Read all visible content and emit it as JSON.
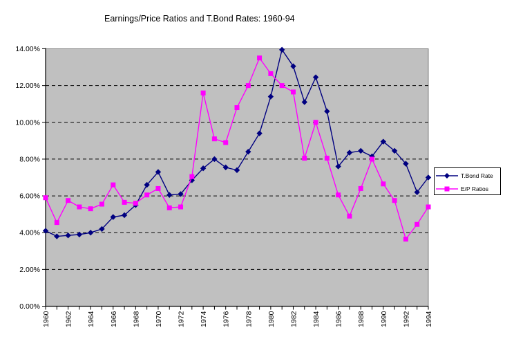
{
  "title": "Earnings/Price Ratios and T.Bond Rates: 1960-94",
  "colors": {
    "page_bg": "#FFFFFF",
    "plot_bg": "#C0C0C0",
    "plot_border": "#808080",
    "axis": "#000000",
    "gridline": "#000000",
    "tbond_series": "#000080",
    "ep_series": "#FF00FF",
    "legend_bg": "#FFFFFF",
    "legend_border": "#000000"
  },
  "legend": {
    "items": [
      {
        "label": "T.Bond Rate",
        "color": "#000080",
        "marker": "diamond"
      },
      {
        "label": "E/P Ratios",
        "color": "#FF00FF",
        "marker": "square"
      }
    ]
  },
  "chart_data": {
    "type": "line",
    "title": "Earnings/Price Ratios and T.Bond Rates: 1960-94",
    "x": [
      1960,
      1961,
      1962,
      1963,
      1964,
      1965,
      1966,
      1967,
      1968,
      1969,
      1970,
      1971,
      1972,
      1973,
      1974,
      1975,
      1976,
      1977,
      1978,
      1979,
      1980,
      1981,
      1982,
      1983,
      1984,
      1985,
      1986,
      1987,
      1988,
      1989,
      1990,
      1991,
      1992,
      1993,
      1994
    ],
    "x_tick_labels": [
      "1960",
      "1962",
      "1964",
      "1966",
      "1968",
      "1970",
      "1972",
      "1974",
      "1976",
      "1978",
      "1980",
      "1982",
      "1984",
      "1986",
      "1988",
      "1990",
      "1992",
      "1994"
    ],
    "y_tick_labels": [
      "0.00%",
      "2.00%",
      "4.00%",
      "6.00%",
      "8.00%",
      "10.00%",
      "12.00%",
      "14.00%"
    ],
    "ylim": [
      0,
      14
    ],
    "y_tick_step": 2,
    "grid": "horizontal-dashed",
    "legend_position": "right",
    "series": [
      {
        "name": "T.Bond Rate",
        "color": "#000080",
        "marker": "diamond",
        "values": [
          4.1,
          3.8,
          3.85,
          3.9,
          4.0,
          4.2,
          4.85,
          4.95,
          5.5,
          6.6,
          7.3,
          6.05,
          6.1,
          6.85,
          7.5,
          8.0,
          7.55,
          7.4,
          8.4,
          9.4,
          11.4,
          13.95,
          13.05,
          11.1,
          12.45,
          10.6,
          7.6,
          8.35,
          8.45,
          8.15,
          8.95,
          8.45,
          7.75,
          6.2,
          7.0
        ]
      },
      {
        "name": "E/P Ratios",
        "color": "#FF00FF",
        "marker": "square",
        "values": [
          5.9,
          4.55,
          5.75,
          5.4,
          5.3,
          5.55,
          6.6,
          5.65,
          5.6,
          6.05,
          6.4,
          5.35,
          5.4,
          7.05,
          11.6,
          9.1,
          8.9,
          10.8,
          12.0,
          13.5,
          12.65,
          12.0,
          11.65,
          8.05,
          10.0,
          8.05,
          6.05,
          4.9,
          6.4,
          8.0,
          6.65,
          5.75,
          3.65,
          4.45,
          5.4
        ]
      }
    ]
  }
}
